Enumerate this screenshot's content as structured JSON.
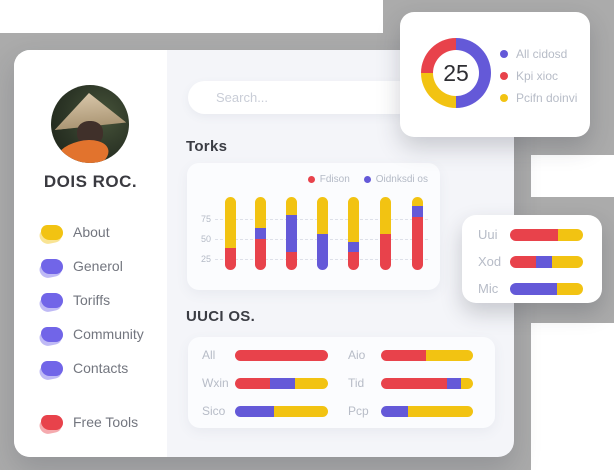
{
  "colors": {
    "red": "#e8424b",
    "purple": "#6459d8",
    "yellow": "#f2c312",
    "backdrop": "#ababab"
  },
  "sidebar": {
    "profile_name": "DOIS ROC.",
    "items": [
      {
        "label": "About",
        "icon_color": "#f2c312"
      },
      {
        "label": "Generol",
        "icon_color": "#7165e8"
      },
      {
        "label": "Toriffs",
        "icon_color": "#7165e8"
      },
      {
        "label": "Community",
        "icon_color": "#7165e8"
      },
      {
        "label": "Contacts",
        "icon_color": "#7165e8"
      }
    ],
    "tools_item": {
      "label": "Free Tools",
      "icon_color": "#e8424b"
    }
  },
  "search": {
    "placeholder": "Search..."
  },
  "donut_card": {
    "center_value": "25",
    "segments": [
      {
        "label": "All cidosd",
        "color": "#6459d8",
        "value": 50
      },
      {
        "label": "Pcifn doinvi",
        "color": "#f2c312",
        "value": 25
      },
      {
        "label": "Kpi xioc",
        "color": "#e8424b",
        "value": 25
      }
    ],
    "legend": [
      {
        "label": "All cidosd",
        "color": "#6459d8"
      },
      {
        "label": "Kpi xioc",
        "color": "#e8424b"
      },
      {
        "label": "Pcifn doinvi",
        "color": "#f2c312"
      }
    ]
  },
  "torks": {
    "title": "Torks",
    "legend": [
      {
        "label": "Fdison",
        "color": "#e8424b"
      },
      {
        "label": "Oidnksdi os",
        "color": "#6459d8"
      }
    ],
    "y_ticks": [
      {
        "label": "75",
        "y": 56
      },
      {
        "label": "50",
        "y": 76
      },
      {
        "label": "25",
        "y": 96
      }
    ],
    "bar_lefts": [
      38,
      68,
      99,
      130,
      161,
      193,
      225
    ],
    "bars": [
      {
        "red": 30,
        "purple": 0,
        "yellow": 70
      },
      {
        "red": 43,
        "purple": 15,
        "yellow": 42
      },
      {
        "red": 24,
        "purple": 52,
        "yellow": 24
      },
      {
        "red": 0,
        "purple": 49,
        "yellow": 51
      },
      {
        "red": 24,
        "purple": 14,
        "yellow": 62
      },
      {
        "red": 49,
        "purple": 0,
        "yellow": 51
      },
      {
        "red": 73,
        "purple": 14,
        "yellow": 13
      }
    ]
  },
  "uuci": {
    "title": "UUCI OS.",
    "rows_left": [
      {
        "label": "All",
        "segments": [
          {
            "color": "#e8424b",
            "value": 100
          }
        ]
      },
      {
        "label": "Wxin",
        "segments": [
          {
            "color": "#e8424b",
            "value": 38
          },
          {
            "color": "#6459d8",
            "value": 27
          },
          {
            "color": "#f2c312",
            "value": 35
          }
        ]
      },
      {
        "label": "Sico",
        "segments": [
          {
            "color": "#6459d8",
            "value": 42
          },
          {
            "color": "#f2c312",
            "value": 58
          }
        ]
      }
    ],
    "rows_right": [
      {
        "label": "Aio",
        "segments": [
          {
            "color": "#e8424b",
            "value": 49
          },
          {
            "color": "#f2c312",
            "value": 51
          }
        ]
      },
      {
        "label": "Tid",
        "segments": [
          {
            "color": "#e8424b",
            "value": 72
          },
          {
            "color": "#6459d8",
            "value": 15
          },
          {
            "color": "#f2c312",
            "value": 13
          }
        ]
      },
      {
        "label": "Pcp",
        "segments": [
          {
            "color": "#6459d8",
            "value": 29
          },
          {
            "color": "#f2c312",
            "value": 71
          }
        ]
      }
    ]
  },
  "mini_card": {
    "rows": [
      {
        "label": "Uui",
        "segments": [
          {
            "color": "#e8424b",
            "value": 66
          },
          {
            "color": "#f2c312",
            "value": 34
          }
        ]
      },
      {
        "label": "Xod",
        "segments": [
          {
            "color": "#e8424b",
            "value": 35
          },
          {
            "color": "#6459d8",
            "value": 22
          },
          {
            "color": "#f2c312",
            "value": 43
          }
        ]
      },
      {
        "label": "Mic",
        "segments": [
          {
            "color": "#6459d8",
            "value": 65
          },
          {
            "color": "#f2c312",
            "value": 35
          }
        ]
      }
    ]
  },
  "chart_data": [
    {
      "type": "pie",
      "title": "",
      "labels": [
        "All cidosd",
        "Pcifn doinvi",
        "Kpi xioc"
      ],
      "values": [
        50,
        25,
        25
      ],
      "center_label": "25",
      "legend_position": "right",
      "colors": [
        "#6459d8",
        "#f2c312",
        "#e8424b"
      ]
    },
    {
      "type": "bar",
      "stacked": true,
      "title": "Torks",
      "categories": [
        "1",
        "2",
        "3",
        "4",
        "5",
        "6",
        "7"
      ],
      "series": [
        {
          "name": "Fdison",
          "color": "#e8424b",
          "values": [
            30,
            43,
            24,
            0,
            24,
            49,
            73
          ]
        },
        {
          "name": "Oidnksdi os",
          "color": "#6459d8",
          "values": [
            0,
            15,
            52,
            49,
            14,
            0,
            14
          ]
        },
        {
          "name": "unlabeled-yellow",
          "color": "#f2c312",
          "values": [
            70,
            42,
            24,
            51,
            62,
            51,
            13
          ]
        }
      ],
      "xlabel": "",
      "ylabel": "",
      "ylim": [
        0,
        100
      ],
      "y_ticks": [
        25,
        50,
        75
      ],
      "grid": "dashed-horizontal",
      "legend_position": "top-right"
    },
    {
      "type": "bar",
      "orientation": "horizontal",
      "stacked": true,
      "title": "UUCI OS.",
      "categories": [
        "All",
        "Wxin",
        "Sico",
        "Aio",
        "Tid",
        "Pcp"
      ],
      "series": [
        {
          "name": "red",
          "color": "#e8424b",
          "values": [
            100,
            38,
            0,
            49,
            72,
            0
          ]
        },
        {
          "name": "purple",
          "color": "#6459d8",
          "values": [
            0,
            27,
            42,
            0,
            15,
            29
          ]
        },
        {
          "name": "yellow",
          "color": "#f2c312",
          "values": [
            0,
            35,
            58,
            51,
            13,
            71
          ]
        }
      ],
      "xlim": [
        0,
        100
      ]
    },
    {
      "type": "bar",
      "orientation": "horizontal",
      "stacked": true,
      "title": "",
      "categories": [
        "Uui",
        "Xod",
        "Mic"
      ],
      "series": [
        {
          "name": "red",
          "color": "#e8424b",
          "values": [
            66,
            35,
            0
          ]
        },
        {
          "name": "purple",
          "color": "#6459d8",
          "values": [
            0,
            22,
            65
          ]
        },
        {
          "name": "yellow",
          "color": "#f2c312",
          "values": [
            34,
            43,
            35
          ]
        }
      ],
      "xlim": [
        0,
        100
      ]
    }
  ]
}
